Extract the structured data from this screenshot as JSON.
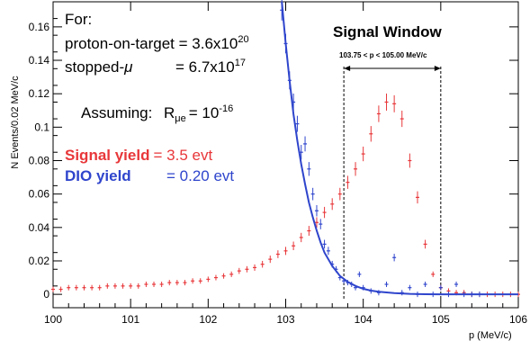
{
  "chart_data": {
    "type": "scatter",
    "xlabel": "p (MeV/c)",
    "ylabel": "N Events/0.02 MeV/c",
    "xlim": [
      100,
      106
    ],
    "ylim": [
      -0.008,
      0.175
    ],
    "x_ticks": [
      "100",
      "101",
      "102",
      "103",
      "104",
      "105",
      "106"
    ],
    "y_ticks": [
      "0",
      "0.02",
      "0.04",
      "0.06",
      "0.08",
      "0.1",
      "0.12",
      "0.14",
      "0.16"
    ],
    "grid": false,
    "legend": "none",
    "annotations": {
      "for_label": "For:",
      "pot_label": "proton-on-target = 3.6x10",
      "pot_exp": "20",
      "stopped_label": "stopped-",
      "stopped_mu": "μ",
      "stopped_eq": "= 6.7x10",
      "stopped_exp": "17",
      "assuming_label": "Assuming:",
      "r_symbol": "R",
      "r_sub": "μe",
      "r_value": "= 10",
      "r_exp": "-16",
      "signal_name": "Signal yield",
      "signal_value": "= 3.5 evt",
      "dio_name": "DIO yield",
      "dio_value": "= 0.20 evt",
      "window_title": "Signal Window",
      "window_range": "103.75 < p < 105.00 MeV/c"
    },
    "signal_window": [
      103.75,
      105.0
    ],
    "series": [
      {
        "key": "signal",
        "color": "#e8373a",
        "x": [
          100.0,
          100.1,
          100.2,
          100.3,
          100.4,
          100.5,
          100.6,
          100.7,
          100.8,
          100.9,
          101.0,
          101.1,
          101.2,
          101.3,
          101.4,
          101.5,
          101.6,
          101.7,
          101.8,
          101.9,
          102.0,
          102.1,
          102.2,
          102.3,
          102.4,
          102.5,
          102.6,
          102.7,
          102.8,
          102.9,
          103.0,
          103.1,
          103.2,
          103.3,
          103.4,
          103.5,
          103.6,
          103.7,
          103.8,
          103.9,
          104.0,
          104.1,
          104.2,
          104.3,
          104.4,
          104.5,
          104.6,
          104.7,
          104.8,
          104.9,
          105.0,
          105.1,
          105.2,
          105.3,
          105.4,
          105.5,
          105.6,
          105.7,
          105.8,
          105.9,
          106.0
        ],
        "y": [
          0.003,
          0.003,
          0.004,
          0.004,
          0.004,
          0.004,
          0.004,
          0.005,
          0.005,
          0.005,
          0.005,
          0.005,
          0.006,
          0.006,
          0.006,
          0.007,
          0.007,
          0.007,
          0.008,
          0.008,
          0.009,
          0.01,
          0.011,
          0.012,
          0.014,
          0.015,
          0.016,
          0.018,
          0.021,
          0.024,
          0.026,
          0.029,
          0.034,
          0.038,
          0.043,
          0.049,
          0.054,
          0.06,
          0.067,
          0.075,
          0.084,
          0.096,
          0.108,
          0.115,
          0.114,
          0.105,
          0.08,
          0.058,
          0.03,
          0.012,
          0.004,
          0.002,
          0.001,
          0.001,
          0.0,
          0.0,
          0.0,
          0.0,
          0.0,
          0.0,
          0.0
        ]
      },
      {
        "key": "dio",
        "color": "#2f45cc",
        "x": [
          102.95,
          103.0,
          103.05,
          103.1,
          103.15,
          103.2,
          103.25,
          103.3,
          103.35,
          103.4,
          103.45,
          103.5,
          103.55,
          103.6,
          103.65,
          103.7,
          103.75,
          103.8,
          103.85,
          103.9,
          103.95,
          104.0,
          104.1,
          104.2,
          104.3,
          104.4,
          104.5,
          104.6,
          104.7,
          104.8,
          104.9,
          105.0,
          105.1,
          105.2,
          105.3,
          105.4,
          105.5
        ],
        "y": [
          0.17,
          0.15,
          0.128,
          0.115,
          0.102,
          0.085,
          0.09,
          0.075,
          0.06,
          0.05,
          0.042,
          0.03,
          0.026,
          0.018,
          0.015,
          0.01,
          0.008,
          0.007,
          0.006,
          0.004,
          0.012,
          0.004,
          0.002,
          0.001,
          0.006,
          0.022,
          0.001,
          0.004,
          0.0,
          0.006,
          0.0,
          0.004,
          0.0,
          0.006,
          0.0,
          0.0,
          0.0
        ]
      }
    ],
    "dio_curve": {
      "x": [
        102.95,
        103.0,
        103.05,
        103.1,
        103.15,
        103.2,
        103.25,
        103.3,
        103.35,
        103.4,
        103.45,
        103.5,
        103.55,
        103.6,
        103.65,
        103.7,
        103.8,
        103.9,
        104.0,
        104.1,
        104.2,
        104.4,
        104.6,
        104.8,
        105.0,
        105.5,
        106.0
      ],
      "y": [
        0.175,
        0.15,
        0.128,
        0.108,
        0.092,
        0.078,
        0.066,
        0.055,
        0.046,
        0.038,
        0.031,
        0.025,
        0.021,
        0.017,
        0.014,
        0.011,
        0.0075,
        0.005,
        0.0033,
        0.0022,
        0.0015,
        0.0007,
        0.0003,
        0.0001,
        0.0,
        0.0,
        0.0
      ]
    }
  }
}
